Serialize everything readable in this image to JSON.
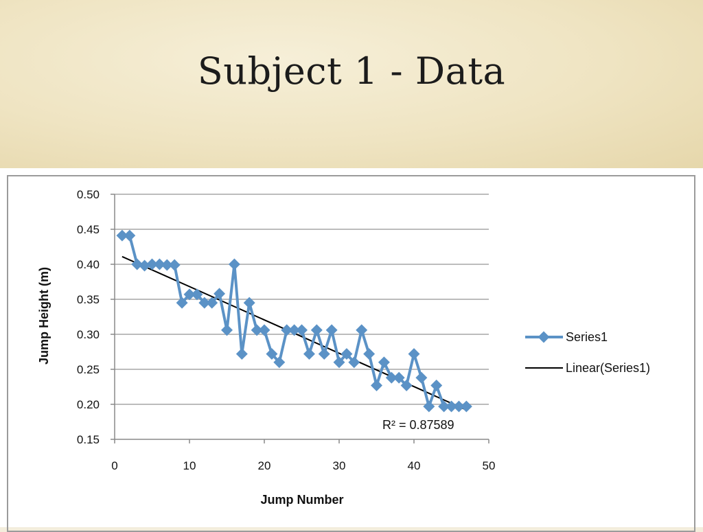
{
  "slide": {
    "title": "Subject 1 - Data"
  },
  "chart_data": {
    "type": "line",
    "xlabel": "Jump Number",
    "ylabel": "Jump Height (m)",
    "xlim": [
      0,
      50
    ],
    "ylim": [
      0.15,
      0.5
    ],
    "x_ticks": [
      0,
      10,
      20,
      30,
      40,
      50
    ],
    "y_ticks": [
      "0.15",
      "0.20",
      "0.25",
      "0.30",
      "0.35",
      "0.40",
      "0.45",
      "0.50"
    ],
    "grid": "horizontal",
    "legend_position": "right",
    "series": [
      {
        "name": "Series1",
        "color": "#5b92c6",
        "marker": "diamond",
        "x": [
          1,
          2,
          3,
          4,
          5,
          6,
          7,
          8,
          9,
          10,
          11,
          12,
          13,
          14,
          15,
          16,
          17,
          18,
          19,
          20,
          21,
          22,
          23,
          24,
          25,
          26,
          27,
          28,
          29,
          30,
          31,
          32,
          33,
          34,
          35,
          36,
          37,
          38,
          39,
          40,
          41,
          42,
          43,
          44,
          45,
          46,
          47
        ],
        "y": [
          0.441,
          0.441,
          0.4,
          0.398,
          0.4,
          0.4,
          0.399,
          0.399,
          0.345,
          0.357,
          0.357,
          0.345,
          0.345,
          0.358,
          0.306,
          0.4,
          0.272,
          0.345,
          0.306,
          0.306,
          0.272,
          0.26,
          0.306,
          0.306,
          0.306,
          0.272,
          0.306,
          0.272,
          0.306,
          0.26,
          0.272,
          0.26,
          0.306,
          0.272,
          0.227,
          0.26,
          0.238,
          0.238,
          0.227,
          0.272,
          0.238,
          0.197,
          0.227,
          0.197,
          0.197,
          0.197,
          0.197
        ]
      }
    ],
    "trendline": {
      "name": "Linear(Series1)",
      "color": "#000000",
      "x": [
        1,
        47
      ],
      "y": [
        0.411,
        0.192
      ],
      "r2_label": "R² = 0.87589"
    }
  }
}
